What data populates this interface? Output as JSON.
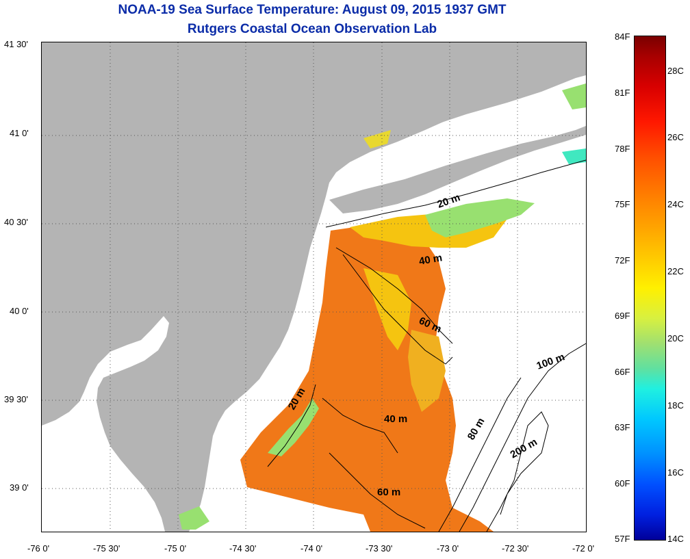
{
  "header": {
    "title": "NOAA-19 Sea Surface Temperature:  August 09, 2015 1937 GMT",
    "subtitle": "Rutgers Coastal Ocean Observation Lab"
  },
  "axes": {
    "lat_labels": [
      "41 30'",
      "41 0'",
      "40 30'",
      "40 0'",
      "39 30'",
      "39 0'"
    ],
    "lon_labels": [
      "-76 0'",
      "-75 30'",
      "-75 0'",
      "-74 30'",
      "-74 0'",
      "-73 30'",
      "-73 0'",
      "-72 30'",
      "-72 0'"
    ]
  },
  "contours": {
    "labels": [
      "20 m",
      "40 m",
      "60 m",
      "20 m",
      "40 m",
      "60 m",
      "80 m",
      "100 m",
      "200 m"
    ]
  },
  "colorbar": {
    "fahrenheit": [
      "84F",
      "81F",
      "78F",
      "75F",
      "72F",
      "69F",
      "66F",
      "63F",
      "60F",
      "57F"
    ],
    "celsius": [
      "28C",
      "26C",
      "24C",
      "22C",
      "20C",
      "18C",
      "16C",
      "14C"
    ],
    "range_f": [
      57,
      84
    ],
    "range_c": [
      14,
      28.9
    ]
  },
  "colors": {
    "title": "#0b2ca8",
    "land": "#b4b4b4",
    "no_data": "#ffffff",
    "warm": "#f07818",
    "mid": "#f5c410",
    "cool": "#98e070"
  }
}
